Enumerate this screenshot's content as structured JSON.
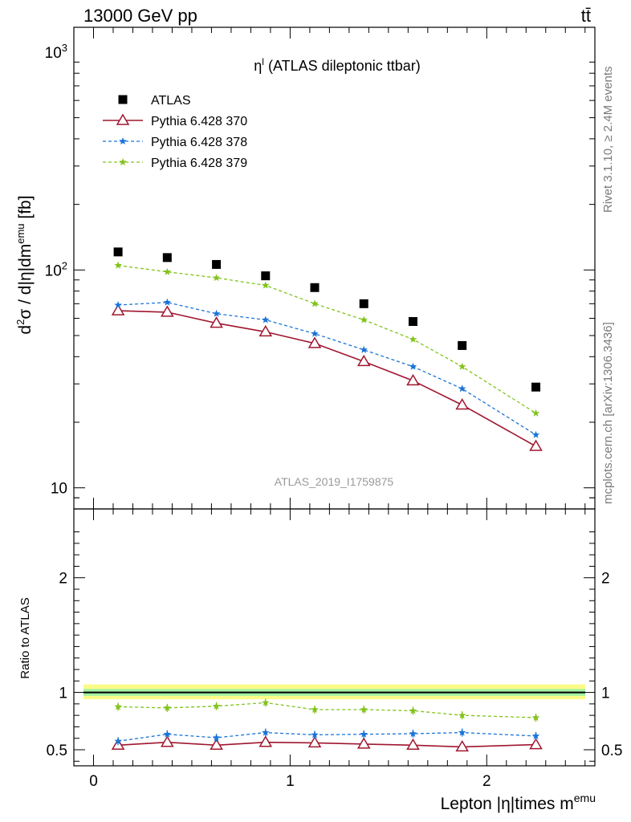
{
  "header": {
    "energy": "13000 GeV pp",
    "process": "tt̄"
  },
  "side_labels": {
    "rivet": "Rivet 3.1.10, ≥ 2.4M events",
    "mcplots": "mcplots.cern.ch [arXiv:1306.3436]"
  },
  "colors": {
    "atlas": "#000000",
    "p370": "#a0162f",
    "p378": "#1b74d8",
    "p379": "#82c31b",
    "band_outer": "#fbfb88",
    "band_inner": "#a3f2a2"
  },
  "chart_data": [
    {
      "type": "scatter",
      "panel": "main",
      "title": "η^l (ATLAS dileptonic ttbar)",
      "ylabel": "d²σ / d|η|dm^emu [fb]",
      "analysis_id": "ATLAS_2019_I1759875",
      "yscale": "log",
      "ylim": [
        8,
        1300
      ],
      "xlim": [
        -0.1,
        2.55
      ],
      "yticks": [
        10,
        100,
        1000
      ],
      "ytick_labels": [
        "10",
        "10²",
        "10³"
      ],
      "legend_position": "top-left",
      "x": [
        0.125,
        0.375,
        0.625,
        0.875,
        1.125,
        1.375,
        1.625,
        1.875,
        2.25
      ],
      "series": [
        {
          "name": "ATLAS",
          "marker": "square",
          "values": [
            121,
            114,
            106,
            94,
            83,
            70,
            58,
            45,
            29
          ]
        },
        {
          "name": "Pythia 6.428 370",
          "marker": "open-triangle",
          "line": "solid",
          "values": [
            65,
            64,
            57,
            52,
            46,
            38,
            31,
            24,
            15.5
          ]
        },
        {
          "name": "Pythia 6.428 378",
          "marker": "star",
          "line": "dashed",
          "values": [
            69,
            71,
            63,
            59,
            51,
            43,
            36,
            28.5,
            17.5
          ]
        },
        {
          "name": "Pythia 6.428 379",
          "marker": "star",
          "line": "dashed",
          "values": [
            105,
            98,
            92,
            85,
            70,
            59,
            48,
            36,
            22
          ]
        }
      ]
    },
    {
      "type": "line",
      "panel": "ratio",
      "ylabel": "Ratio to ATLAS",
      "xlabel": "Lepton |η|times m^emu",
      "ylim": [
        0.36,
        2.6
      ],
      "xlim": [
        -0.1,
        2.55
      ],
      "yticks": [
        0.5,
        1,
        2
      ],
      "ytick_labels": [
        "0.5",
        "1",
        "2"
      ],
      "xticks": [
        0,
        1,
        2
      ],
      "xtick_labels": [
        "0",
        "1",
        "2"
      ],
      "reference_band": {
        "inner": [
          0.97,
          1.03
        ],
        "outer": [
          0.94,
          1.07
        ]
      },
      "x": [
        0.125,
        0.375,
        0.625,
        0.875,
        1.125,
        1.375,
        1.625,
        1.875,
        2.25
      ],
      "series": [
        {
          "name": "Pythia 6.428 370",
          "values": [
            0.54,
            0.565,
            0.54,
            0.565,
            0.56,
            0.55,
            0.54,
            0.525,
            0.545
          ]
        },
        {
          "name": "Pythia 6.428 378",
          "values": [
            0.575,
            0.635,
            0.605,
            0.65,
            0.63,
            0.635,
            0.64,
            0.65,
            0.62
          ]
        },
        {
          "name": "Pythia 6.428 379",
          "values": [
            0.875,
            0.865,
            0.88,
            0.91,
            0.85,
            0.85,
            0.84,
            0.8,
            0.78
          ]
        }
      ]
    }
  ]
}
